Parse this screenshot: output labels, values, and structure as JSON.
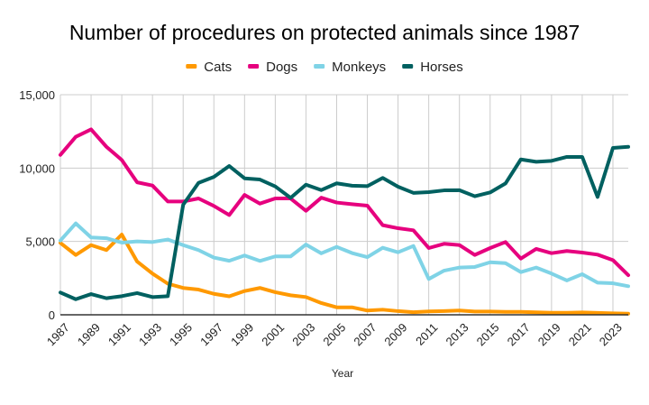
{
  "chart_data": {
    "type": "line",
    "title": "Number of procedures on protected animals since 1987",
    "xlabel": "Year",
    "ylabel": "",
    "x": [
      1987,
      1988,
      1989,
      1990,
      1991,
      1992,
      1993,
      1994,
      1995,
      1996,
      1997,
      1998,
      1999,
      2000,
      2001,
      2002,
      2003,
      2004,
      2005,
      2006,
      2007,
      2008,
      2009,
      2010,
      2011,
      2012,
      2013,
      2014,
      2015,
      2016,
      2017,
      2018,
      2019,
      2020,
      2021,
      2022,
      2023,
      2024
    ],
    "x_tick_labels": [
      "1987",
      "1989",
      "1991",
      "1993",
      "1995",
      "1997",
      "1999",
      "2001",
      "2003",
      "2005",
      "2007",
      "2009",
      "2011",
      "2013",
      "2015",
      "2017",
      "2019",
      "2021",
      "2023"
    ],
    "y_tick_labels": [
      "0",
      "5,000",
      "10,000",
      "15,000"
    ],
    "y_ticks": [
      0,
      5000,
      10000,
      15000
    ],
    "ylim": [
      0,
      15000
    ],
    "xlim": [
      1987,
      2024
    ],
    "grid": true,
    "legend_position": "top-center",
    "series": [
      {
        "name": "Cats",
        "color": "#ff9900",
        "values": [
          4900,
          4080,
          4750,
          4410,
          5470,
          3630,
          2810,
          2120,
          1830,
          1720,
          1430,
          1260,
          1620,
          1830,
          1540,
          1330,
          1210,
          800,
          510,
          510,
          290,
          350,
          250,
          180,
          230,
          250,
          290,
          220,
          220,
          200,
          200,
          170,
          140,
          140,
          160,
          130,
          100,
          80
        ]
      },
      {
        "name": "Dogs",
        "color": "#e6007e",
        "values": [
          10900,
          12130,
          12640,
          11450,
          10550,
          9030,
          8810,
          7720,
          7720,
          7930,
          7420,
          6800,
          8170,
          7580,
          7930,
          7930,
          7090,
          7980,
          7650,
          7540,
          7440,
          6110,
          5900,
          5760,
          4550,
          4840,
          4750,
          4080,
          4550,
          4960,
          3830,
          4490,
          4200,
          4350,
          4240,
          4100,
          3730,
          2700
        ]
      },
      {
        "name": "Monkeys",
        "color": "#7fd3e6",
        "values": [
          5060,
          6230,
          5270,
          5220,
          4920,
          5000,
          4960,
          5130,
          4750,
          4410,
          3900,
          3680,
          4040,
          3670,
          3980,
          3980,
          4790,
          4190,
          4630,
          4210,
          3930,
          4570,
          4260,
          4690,
          2440,
          3010,
          3220,
          3260,
          3580,
          3520,
          2910,
          3220,
          2810,
          2340,
          2770,
          2190,
          2150,
          1950
        ]
      },
      {
        "name": "Horses",
        "color": "#006060",
        "values": [
          1520,
          1060,
          1410,
          1130,
          1270,
          1480,
          1210,
          1270,
          7500,
          8990,
          9400,
          10140,
          9300,
          9220,
          8750,
          7970,
          8870,
          8500,
          8960,
          8800,
          8770,
          9330,
          8730,
          8310,
          8360,
          8480,
          8490,
          8080,
          8340,
          8950,
          10590,
          10430,
          10490,
          10760,
          10760,
          8030,
          11370,
          11450
        ]
      }
    ]
  }
}
